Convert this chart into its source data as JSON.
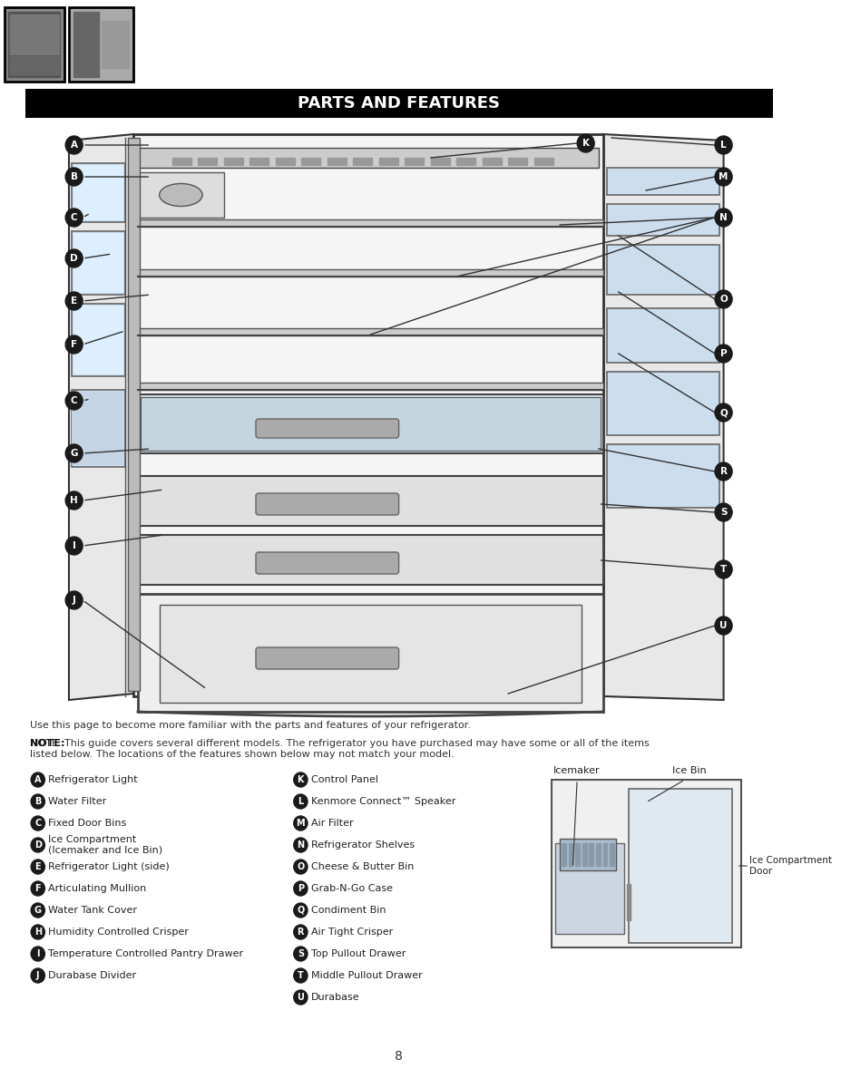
{
  "title": "PARTS AND FEATURES",
  "title_bg": "#000000",
  "title_color": "#ffffff",
  "page_bg": "#ffffff",
  "note_text1": "Use this page to become more familiar with the parts and features of your refrigerator.",
  "note_text2": "NOTE: This guide covers several different models. The refrigerator you have purchased may have some or all of the items\nlisted below. The locations of the features shown below may not match your model.",
  "left_labels": [
    [
      "A",
      "Refrigerator Light"
    ],
    [
      "B",
      "Water Filter"
    ],
    [
      "C",
      "Fixed Door Bins"
    ],
    [
      "D",
      "Ice Compartment\n(Icemaker and Ice Bin)"
    ],
    [
      "E",
      "Refrigerator Light (side)"
    ],
    [
      "F",
      "Articulating Mullion"
    ],
    [
      "G",
      "Water Tank Cover"
    ],
    [
      "H",
      "Humidity Controlled Crisper"
    ],
    [
      "I",
      "Temperature Controlled Pantry Drawer"
    ],
    [
      "J",
      "Durabase Divider"
    ]
  ],
  "right_labels": [
    [
      "K",
      "Control Panel"
    ],
    [
      "L",
      "Kenmore Connect™ Speaker"
    ],
    [
      "M",
      "Air Filter"
    ],
    [
      "N",
      "Refrigerator Shelves"
    ],
    [
      "O",
      "Cheese & Butter Bin"
    ],
    [
      "P",
      "Grab-N-Go Case"
    ],
    [
      "Q",
      "Condiment Bin"
    ],
    [
      "R",
      "Air Tight Crisper"
    ],
    [
      "S",
      "Top Pullout Drawer"
    ],
    [
      "T",
      "Middle Pullout Drawer"
    ],
    [
      "U",
      "Durabase"
    ]
  ],
  "icemaker_label": "Icemaker",
  "icebin_label": "Ice Bin",
  "icecompartment_label": "Ice Compartment\nDoor",
  "page_number": "8"
}
